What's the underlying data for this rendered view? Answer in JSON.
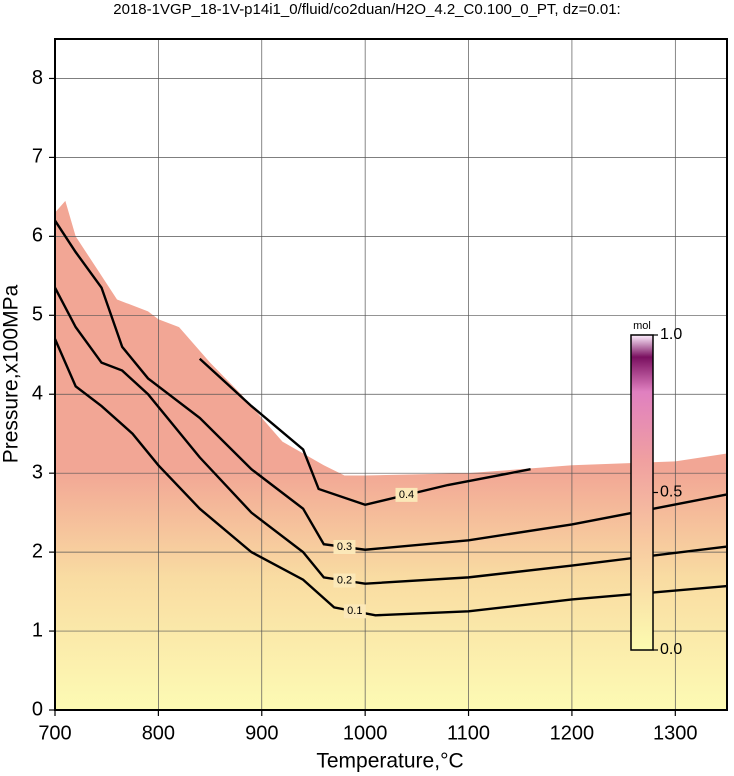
{
  "chart_data": {
    "type": "contour",
    "title": "2018-1VGP_18-1V-p14i1_0/fluid/co2duan/H2O_4.2_C0.100_0_PT, dz=0.01:",
    "x_label": "Temperature,°C",
    "y_label": "Pressure,x100MPa",
    "xlim": [
      700,
      1350
    ],
    "xticks": [
      700,
      800,
      900,
      1000,
      1100,
      1200,
      1300
    ],
    "ylim": [
      0,
      8.5
    ],
    "yticks": [
      0,
      1,
      2,
      3,
      4,
      5,
      6,
      7,
      8
    ],
    "grid": true,
    "boundary": {
      "x": [
        700,
        710,
        720,
        740,
        760,
        790,
        800,
        820,
        850,
        880,
        920,
        960,
        980,
        1000,
        1100,
        1200,
        1300,
        1350
      ],
      "y": [
        6.3,
        6.45,
        6.0,
        5.6,
        5.2,
        5.05,
        4.95,
        4.85,
        4.4,
        4.0,
        3.4,
        3.1,
        2.97,
        2.97,
        3.0,
        3.1,
        3.15,
        3.25
      ]
    },
    "contours": [
      {
        "level": 0.1,
        "x": [
          700,
          720,
          745,
          775,
          800,
          840,
          890,
          940,
          970,
          1010,
          1100,
          1200,
          1350
        ],
        "y": [
          4.7,
          4.1,
          3.85,
          3.5,
          3.1,
          2.55,
          2.0,
          1.65,
          1.3,
          1.2,
          1.25,
          1.4,
          1.57
        ]
      },
      {
        "level": 0.2,
        "x": [
          700,
          720,
          745,
          765,
          790,
          840,
          890,
          940,
          960,
          1000,
          1100,
          1200,
          1350
        ],
        "y": [
          5.35,
          4.85,
          4.4,
          4.3,
          4.0,
          3.2,
          2.5,
          2.0,
          1.68,
          1.6,
          1.68,
          1.83,
          2.07
        ]
      },
      {
        "level": 0.3,
        "x": [
          700,
          720,
          745,
          765,
          790,
          840,
          890,
          940,
          960,
          1000,
          1100,
          1200,
          1350
        ],
        "y": [
          6.2,
          5.8,
          5.35,
          4.6,
          4.2,
          3.7,
          3.05,
          2.55,
          2.1,
          2.03,
          2.15,
          2.35,
          2.73
        ]
      },
      {
        "level": 0.4,
        "x": [
          840,
          890,
          940,
          955,
          1000,
          1080,
          1160
        ],
        "y": [
          4.45,
          3.85,
          3.3,
          2.8,
          2.6,
          2.85,
          3.05
        ]
      }
    ],
    "colorbar": {
      "label": "mol",
      "lim": [
        0,
        1
      ],
      "ticks": [
        {
          "value": 0,
          "label": "0.0"
        },
        {
          "value": 0.5,
          "label": "0.5"
        },
        {
          "value": 1,
          "label": "1.0"
        }
      ]
    }
  }
}
